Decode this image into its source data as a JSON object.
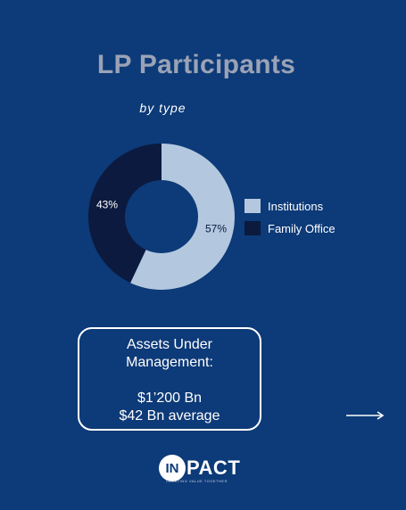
{
  "title": "LP Participants",
  "subtitle": "by type",
  "chart_data": {
    "type": "pie",
    "series": [
      {
        "name": "Institutions",
        "value": 57,
        "label": "57%",
        "color": "#b3c8df"
      },
      {
        "name": "Family Office",
        "value": 43,
        "label": "43%",
        "color": "#0b1a3e"
      }
    ],
    "legend": "right"
  },
  "aum": {
    "heading_line1": "Assets Under",
    "heading_line2": "Management:",
    "total": "$1’200 Bn",
    "average": "$42 Bn average"
  },
  "logo": {
    "mark": "IN",
    "word": "PACT",
    "tagline": "CREATING VALUE TOGETHER"
  },
  "icons": {
    "arrow": "right-arrow-icon"
  }
}
